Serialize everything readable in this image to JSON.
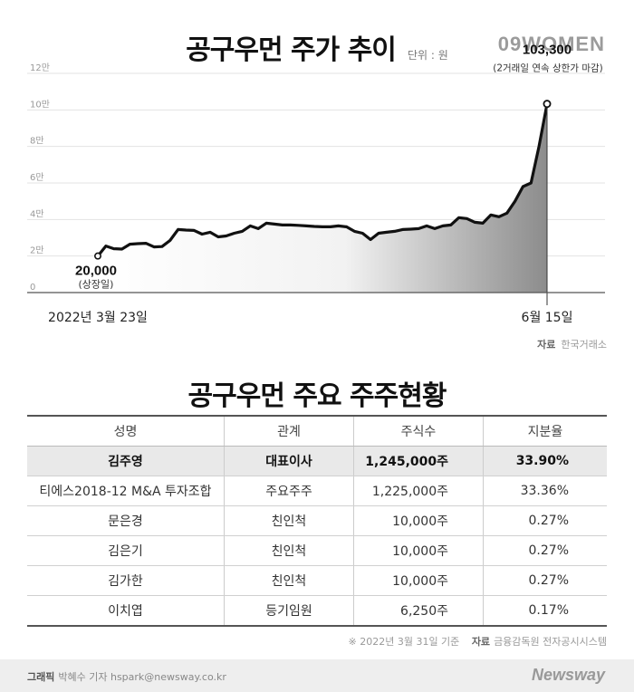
{
  "header": {
    "title": "공구우먼 주가 추이",
    "unit": "단위 : 원",
    "brand": "09WOMEN"
  },
  "chart_data": {
    "type": "area",
    "title": "공구우먼 주가 추이",
    "unit": "원",
    "y_ticks": [
      "0",
      "2만",
      "4만",
      "6만",
      "8만",
      "10만",
      "12만"
    ],
    "ylim": [
      0,
      120000
    ],
    "grid": true,
    "x_start_label": "2022년 3월 23일",
    "x_end_label": "6월 15일",
    "start": {
      "value": 20000,
      "label": "20,000",
      "note": "(상장일)"
    },
    "end": {
      "value": 103300,
      "label": "103,300",
      "note": "(2거래일 연속 상한가 마감)"
    },
    "values": [
      20000,
      25500,
      24000,
      23800,
      26500,
      26800,
      27000,
      25000,
      25200,
      28500,
      34500,
      34200,
      34000,
      32000,
      33000,
      30500,
      31000,
      32500,
      33500,
      36500,
      35000,
      38000,
      37500,
      37000,
      37000,
      36800,
      36500,
      36200,
      36000,
      36000,
      36500,
      36000,
      33500,
      32500,
      29000,
      32500,
      33000,
      33500,
      34500,
      34700,
      35000,
      36500,
      35000,
      36500,
      37000,
      41000,
      40500,
      38500,
      38000,
      42500,
      41500,
      43500,
      50000,
      58000,
      60000,
      80000,
      103300
    ]
  },
  "source1": {
    "label": "자료",
    "text": "한국거래소"
  },
  "table": {
    "title": "공구우먼 주요 주주현황",
    "headers": [
      "성명",
      "관계",
      "주식수",
      "지분율"
    ],
    "rows": [
      {
        "name": "김주영",
        "relation": "대표이사",
        "shares": "1,245,000주",
        "ratio": "33.90%"
      },
      {
        "name": "티에스2018-12 M&A 투자조합",
        "relation": "주요주주",
        "shares": "1,225,000주",
        "ratio": "33.36%"
      },
      {
        "name": "문은경",
        "relation": "친인척",
        "shares": "10,000주",
        "ratio": "0.27%"
      },
      {
        "name": "김은기",
        "relation": "친인척",
        "shares": "10,000주",
        "ratio": "0.27%"
      },
      {
        "name": "김가한",
        "relation": "친인척",
        "shares": "10,000주",
        "ratio": "0.27%"
      },
      {
        "name": "이치엽",
        "relation": "등기임원",
        "shares": "6,250주",
        "ratio": "0.17%"
      }
    ]
  },
  "note": {
    "mark": "※",
    "text": "2022년 3월 31일 기준",
    "source_label": "자료",
    "source_text": "금융감독원 전자공시시스템"
  },
  "footer": {
    "credit_label": "그래픽",
    "credit_text": "박혜수 기자 hspark@newsway.co.kr",
    "logo": "Newsway"
  }
}
